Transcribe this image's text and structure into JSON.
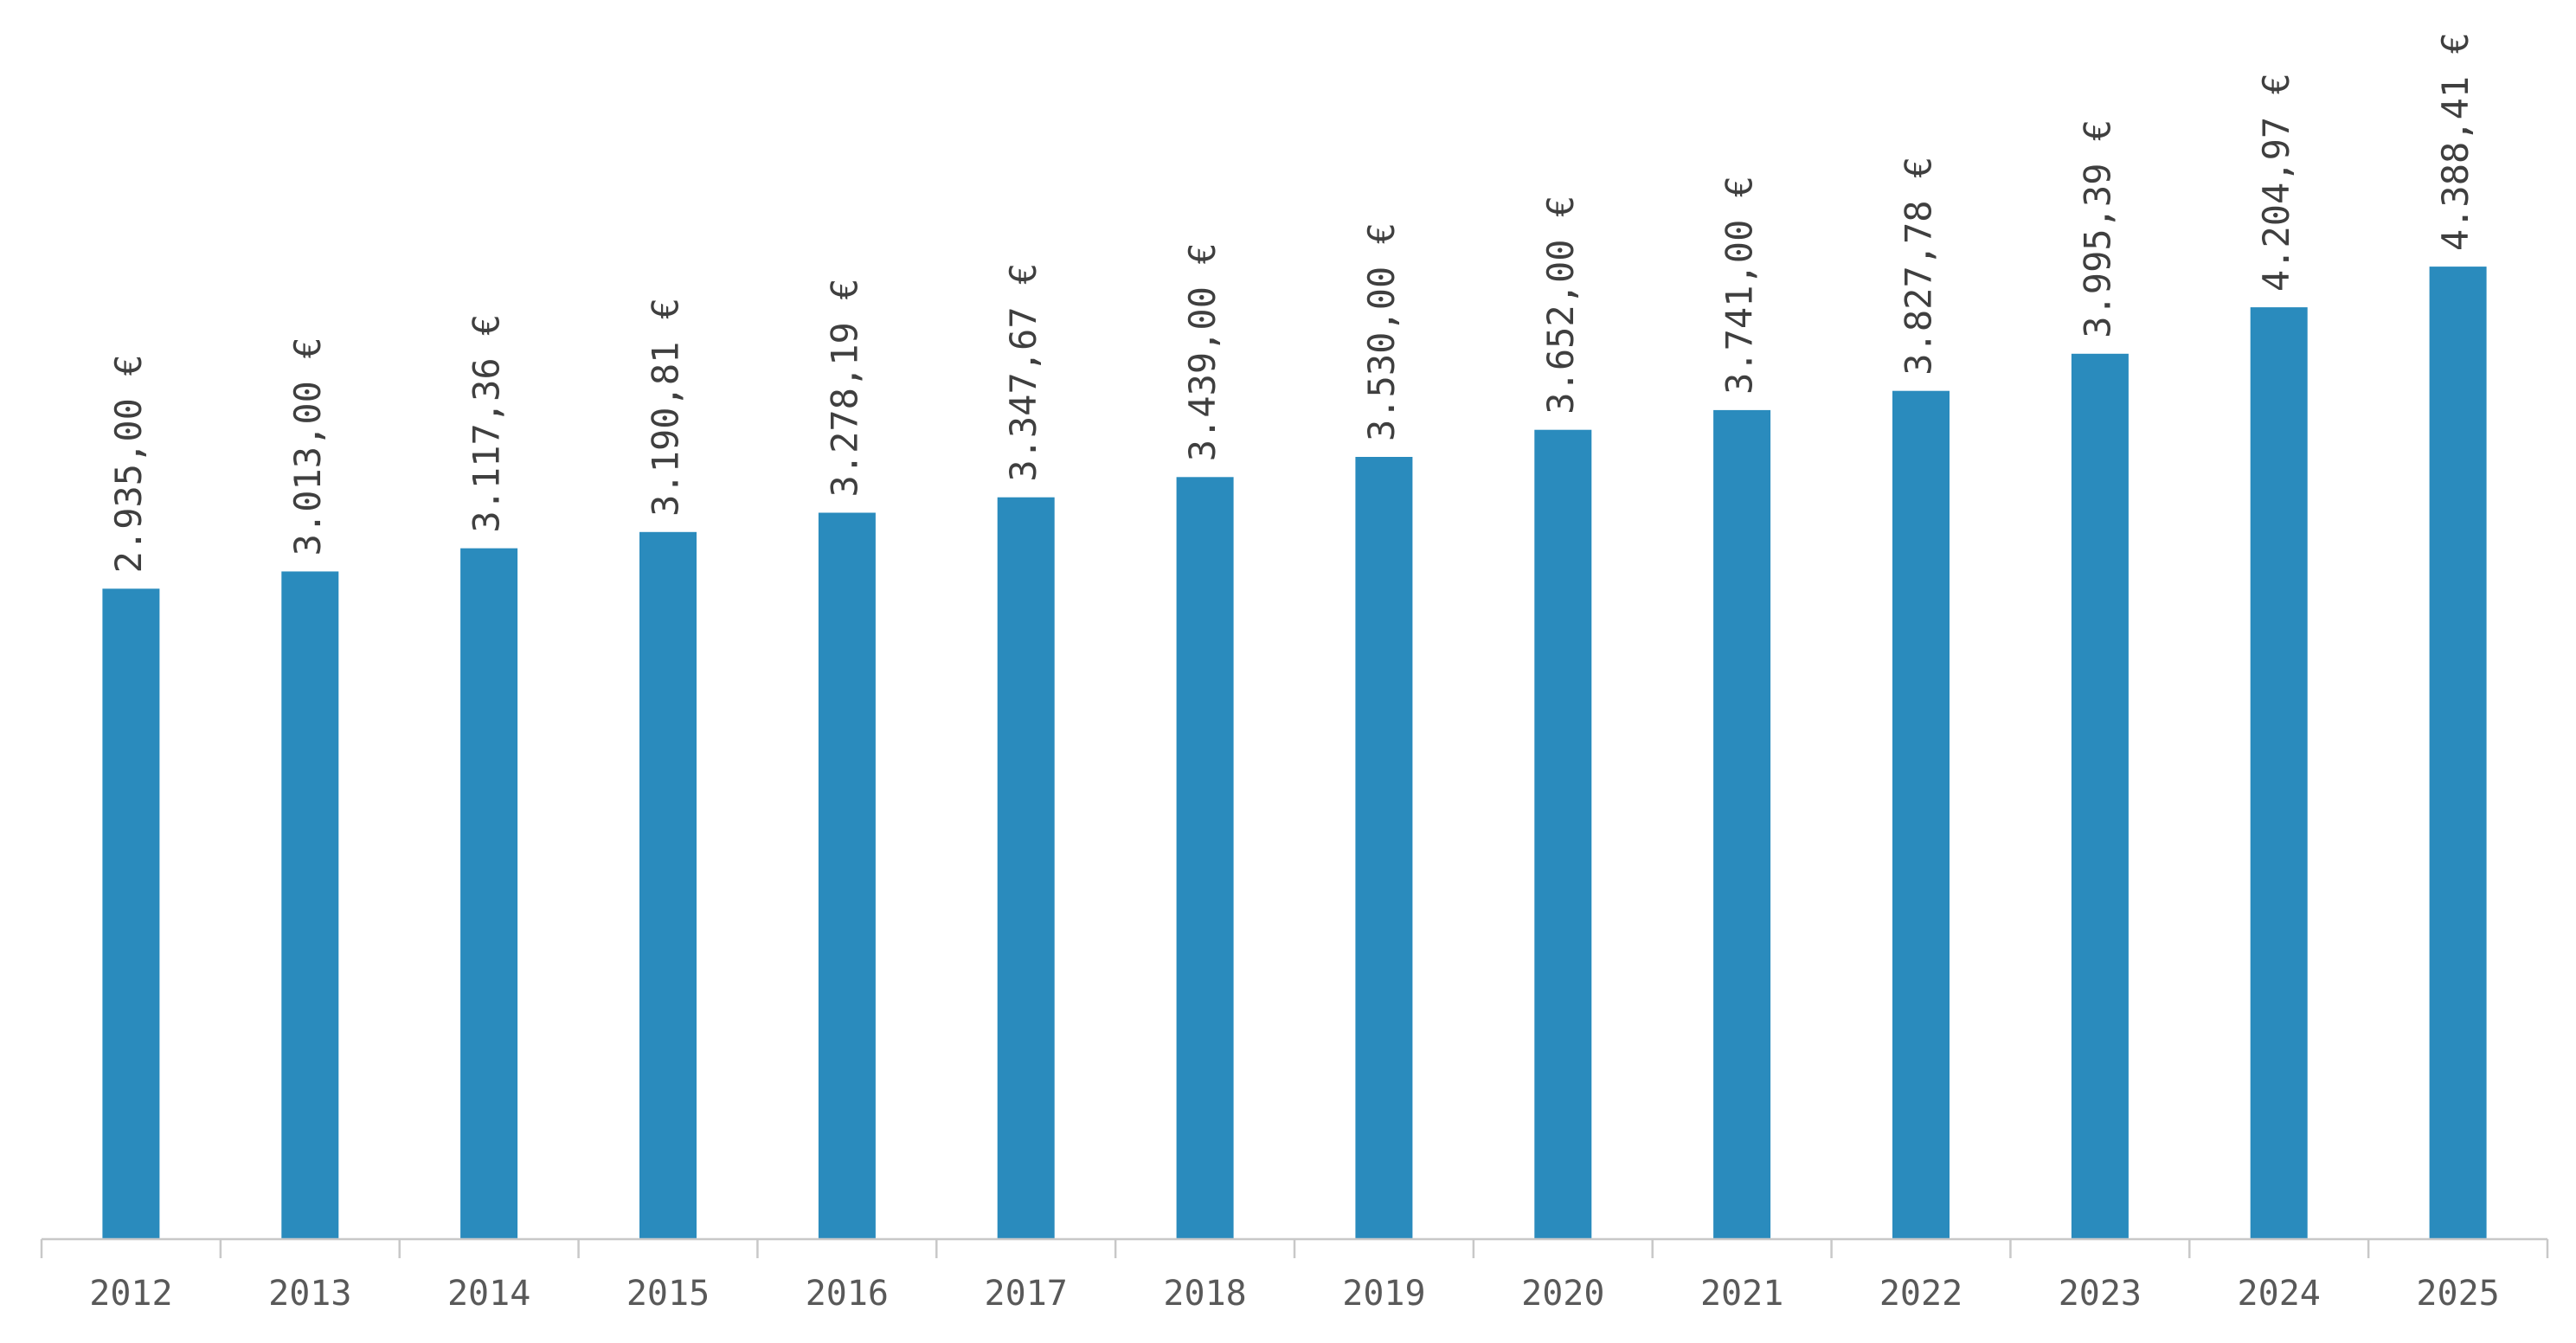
{
  "chart_data": {
    "type": "bar",
    "categories": [
      "2012",
      "2013",
      "2014",
      "2015",
      "2016",
      "2017",
      "2018",
      "2019",
      "2020",
      "2021",
      "2022",
      "2023",
      "2024",
      "2025"
    ],
    "series": [
      {
        "values": [
          2935.0,
          3013.0,
          3117.36,
          3190.81,
          3278.19,
          3347.67,
          3439.0,
          3530.0,
          3652.0,
          3741.0,
          3827.78,
          3995.39,
          4204.97,
          4388.41
        ],
        "data_labels": [
          "2.935,00 €",
          "3.013,00 €",
          "3.117,36 €",
          "3.190,81 €",
          "3.278,19 €",
          "3.347,67 €",
          "3.439,00 €",
          "3.530,00 €",
          "3.652,00 €",
          "3.741,00 €",
          "3.827,78 €",
          "3.995,39 €",
          "4.204,97 €",
          "4.388,41 €"
        ]
      }
    ],
    "title": "",
    "xlabel": "",
    "ylabel": "",
    "ylim": [
      0,
      5000
    ],
    "grid": false,
    "legend": "none",
    "data_label_orientation": "vertical",
    "colors": {
      "bar": "#2a8bbd",
      "axis": "#c8c8c8",
      "tick_text": "#595959",
      "label_text": "#3f3f3f"
    }
  }
}
